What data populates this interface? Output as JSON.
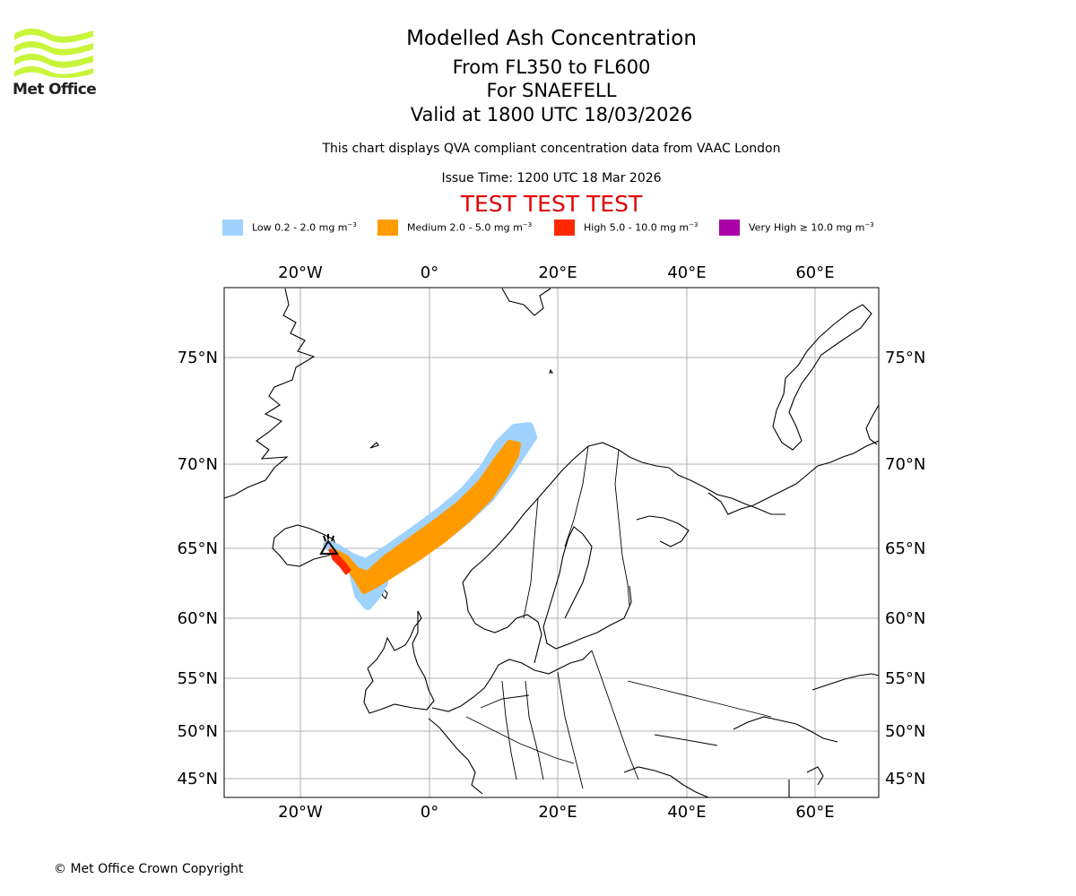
{
  "logo": {
    "text": "Met Office",
    "color": "#c8f53a"
  },
  "header": {
    "title": "Modelled Ash Concentration",
    "level_range": "From FL350 to FL600",
    "volcano": "For SNAEFELL",
    "valid_time": "Valid at 1800 UTC 18/03/2026",
    "note": "This chart displays QVA compliant concentration data from VAAC London",
    "issue_time": "Issue Time: 1200 UTC 18 Mar 2026",
    "test_banner": "TEST TEST TEST"
  },
  "legend": {
    "unit": "mg m",
    "items": [
      {
        "label": "Low 0.2 - 2.0 mg m",
        "color": "#a0d2ff"
      },
      {
        "label": "Medium 2.0 - 5.0 mg m",
        "color": "#ff9b00"
      },
      {
        "label": "High 5.0 - 10.0 mg m",
        "color": "#ff2800"
      },
      {
        "label": "Very High ≥ 10.0 mg m",
        "color": "#aa00aa"
      }
    ]
  },
  "map": {
    "lon_labels": [
      "20°W",
      "0°",
      "20°E",
      "40°E",
      "60°E"
    ],
    "lat_labels": [
      "75°N",
      "70°N",
      "65°N",
      "60°N",
      "55°N",
      "50°N",
      "45°N"
    ],
    "lon_values": [
      -20,
      0,
      20,
      40,
      60
    ],
    "lat_values": [
      75,
      70,
      65,
      60,
      55,
      50,
      45
    ],
    "grid_color": "#b0b0b0"
  },
  "footer": {
    "copyright": "© Met Office Crown Copyright"
  }
}
